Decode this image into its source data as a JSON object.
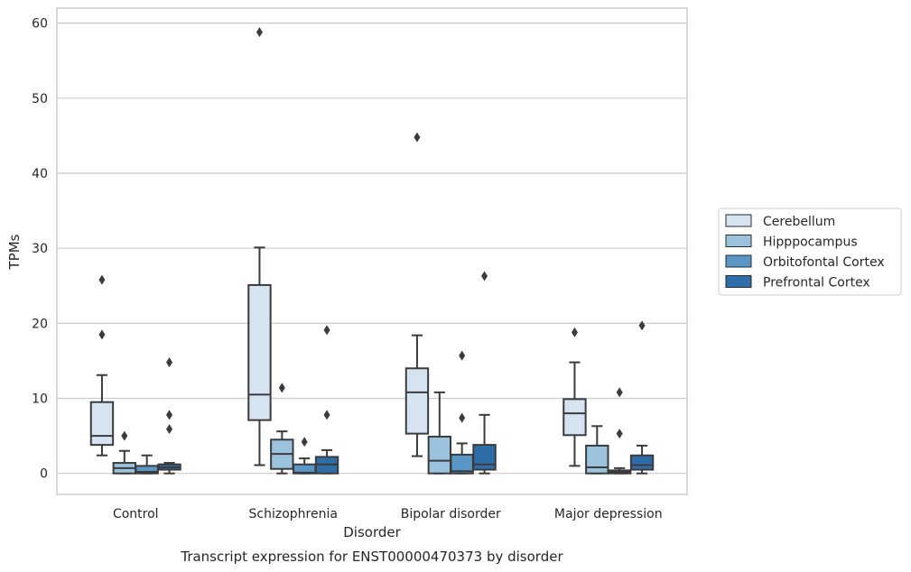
{
  "chart_data": {
    "type": "box",
    "title": "",
    "caption": "Transcript expression for ENST00000470373 by disorder",
    "xlabel": "Disorder",
    "ylabel": "TPMs",
    "ylim": [
      -2.8,
      62
    ],
    "yticks": [
      0,
      10,
      20,
      30,
      40,
      50,
      60
    ],
    "grid": "horizontal",
    "legend_position": "right",
    "categories": [
      "Control",
      "Schizophrenia",
      "Bipolar disorder",
      "Major depression"
    ],
    "series": [
      {
        "name": "Cerebellum",
        "color": "#d6e4f2",
        "boxes": [
          {
            "whisker_low": 2.4,
            "q1": 3.8,
            "median": 5.0,
            "q3": 9.5,
            "whisker_high": 13.1,
            "outliers": [
              18.5,
              25.8
            ]
          },
          {
            "whisker_low": 1.1,
            "q1": 7.1,
            "median": 10.5,
            "q3": 25.1,
            "whisker_high": 30.1,
            "outliers": [
              58.8
            ]
          },
          {
            "whisker_low": 2.3,
            "q1": 5.3,
            "median": 10.8,
            "q3": 14.0,
            "whisker_high": 18.4,
            "outliers": [
              44.8
            ]
          },
          {
            "whisker_low": 1.0,
            "q1": 5.1,
            "median": 8.0,
            "q3": 9.9,
            "whisker_high": 14.8,
            "outliers": [
              18.8
            ]
          }
        ]
      },
      {
        "name": "Hipppocampus",
        "color": "#9cc3de",
        "boxes": [
          {
            "whisker_low": 0.0,
            "q1": 0.0,
            "median": 0.7,
            "q3": 1.4,
            "whisker_high": 3.0,
            "outliers": [
              5.0
            ]
          },
          {
            "whisker_low": 0.0,
            "q1": 0.6,
            "median": 2.6,
            "q3": 4.5,
            "whisker_high": 5.6,
            "outliers": [
              11.4
            ]
          },
          {
            "whisker_low": 0.0,
            "q1": 0.0,
            "median": 1.7,
            "q3": 4.9,
            "whisker_high": 10.8,
            "outliers": []
          },
          {
            "whisker_low": 0.0,
            "q1": 0.0,
            "median": 0.8,
            "q3": 3.7,
            "whisker_high": 6.3,
            "outliers": []
          }
        ]
      },
      {
        "name": "Orbitofontal Cortex",
        "color": "#5a97c6",
        "boxes": [
          {
            "whisker_low": 0.0,
            "q1": 0.0,
            "median": 0.2,
            "q3": 1.0,
            "whisker_high": 2.4,
            "outliers": []
          },
          {
            "whisker_low": 0.0,
            "q1": 0.0,
            "median": 0.1,
            "q3": 1.2,
            "whisker_high": 2.0,
            "outliers": [
              4.2
            ]
          },
          {
            "whisker_low": 0.0,
            "q1": 0.0,
            "median": 0.3,
            "q3": 2.5,
            "whisker_high": 4.0,
            "outliers": [
              7.4,
              15.7
            ]
          },
          {
            "whisker_low": 0.0,
            "q1": 0.0,
            "median": 0.2,
            "q3": 0.4,
            "whisker_high": 0.7,
            "outliers": [
              5.3,
              10.8
            ]
          }
        ]
      },
      {
        "name": "Prefrontal Cortex",
        "color": "#2f6da9",
        "boxes": [
          {
            "whisker_low": 0.0,
            "q1": 0.5,
            "median": 0.8,
            "q3": 1.2,
            "whisker_high": 1.4,
            "outliers": [
              5.9,
              7.8,
              14.8
            ]
          },
          {
            "whisker_low": 0.0,
            "q1": 0.0,
            "median": 1.2,
            "q3": 2.2,
            "whisker_high": 3.1,
            "outliers": [
              7.8,
              19.1
            ]
          },
          {
            "whisker_low": 0.0,
            "q1": 0.5,
            "median": 1.2,
            "q3": 3.8,
            "whisker_high": 7.8,
            "outliers": [
              26.3
            ]
          },
          {
            "whisker_low": 0.0,
            "q1": 0.5,
            "median": 1.1,
            "q3": 2.4,
            "whisker_high": 3.7,
            "outliers": [
              19.7
            ]
          }
        ]
      }
    ]
  }
}
